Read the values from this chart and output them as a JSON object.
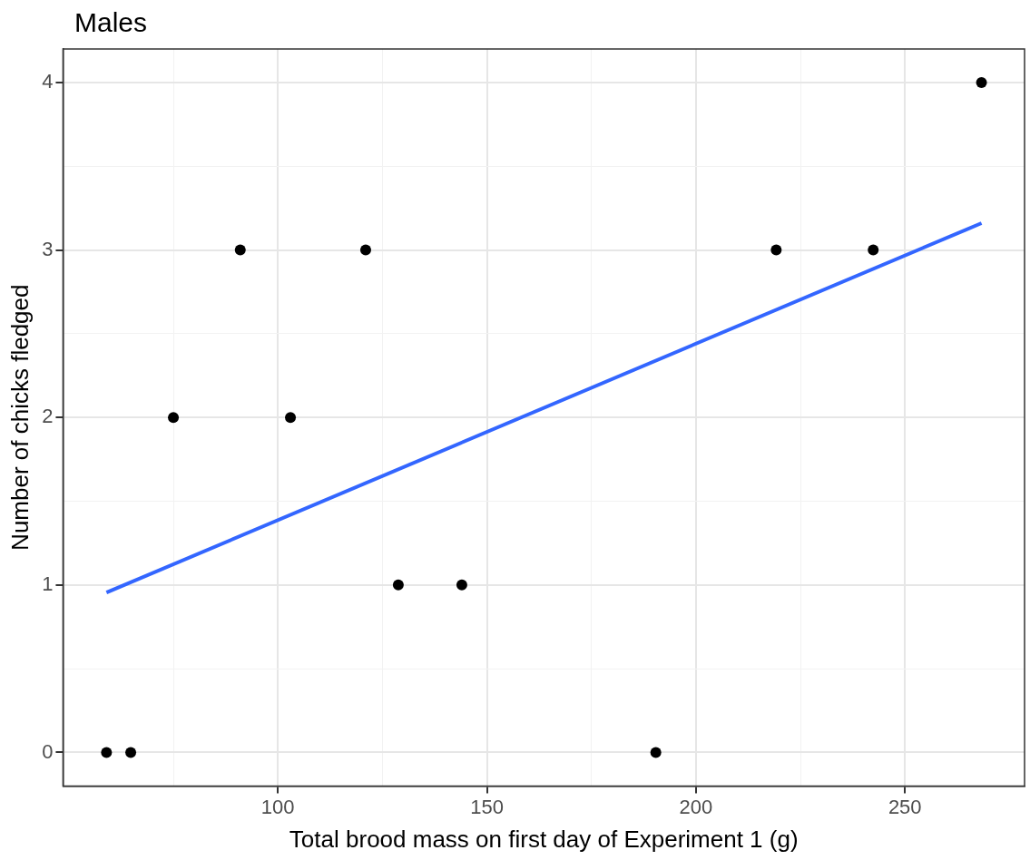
{
  "chart_data": {
    "type": "scatter",
    "title": "Males",
    "xlabel": "Total brood mass on first day of Experiment 1 (g)",
    "ylabel": "Number of chicks fledged",
    "xlim": [
      48.6,
      278.6
    ],
    "ylim": [
      -0.2,
      4.2
    ],
    "xticks": [
      {
        "value": 75,
        "label": null
      },
      100,
      {
        "value": 125,
        "label": null
      },
      150,
      {
        "value": 175,
        "label": null
      },
      200,
      {
        "value": 225,
        "label": null
      },
      250
    ],
    "yticks": [
      0,
      {
        "value": 0.5,
        "label": null
      },
      1,
      {
        "value": 1.5,
        "label": null
      },
      2,
      {
        "value": 2.5,
        "label": null
      },
      3,
      {
        "value": 3.5,
        "label": null
      },
      4
    ],
    "grid": true,
    "marker": "circle",
    "series": [
      {
        "type": "scatter",
        "color": "#000000",
        "x": [
          59,
          64.8,
          75,
          91,
          103,
          121,
          128.8,
          144,
          190.4,
          219.2,
          242.4,
          268.3
        ],
        "values": [
          0,
          0,
          2,
          3,
          2,
          3,
          1,
          1,
          0,
          3,
          3,
          4
        ]
      },
      {
        "type": "line",
        "color": "#3366ff",
        "marker": "none",
        "x": [
          59,
          268.3
        ],
        "values": [
          0.955,
          3.16
        ]
      }
    ]
  }
}
